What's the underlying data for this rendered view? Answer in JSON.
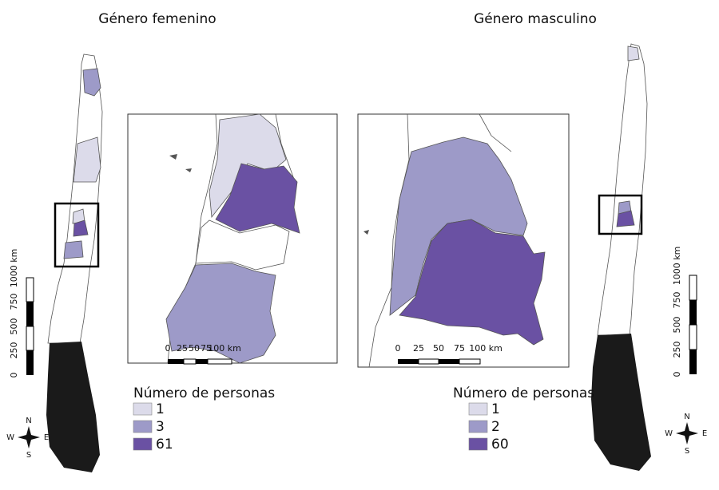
{
  "panels": [
    {
      "title": "Género femenino",
      "legend": {
        "title": "Número de personas",
        "items": [
          {
            "label": "1",
            "color": "#dcdbea"
          },
          {
            "label": "3",
            "color": "#9d9ac8"
          },
          {
            "label": "61",
            "color": "#6a51a3"
          }
        ]
      },
      "inset_scale": [
        "0",
        "25",
        "50",
        "75",
        "100 km"
      ],
      "map_scale": [
        "0",
        "250",
        "500",
        "750",
        "1000 km"
      ],
      "compass": [
        "N",
        "S",
        "E",
        "W"
      ]
    },
    {
      "title": "Género masculino",
      "legend": {
        "title": "Número de personas",
        "items": [
          {
            "label": "1",
            "color": "#dcdbea"
          },
          {
            "label": "2",
            "color": "#9d9ac8"
          },
          {
            "label": "60",
            "color": "#6a51a3"
          }
        ]
      },
      "inset_scale": [
        "0",
        "25",
        "50",
        "75",
        "100 km"
      ],
      "map_scale": [
        "0",
        "250",
        "500",
        "750",
        "1000 km"
      ],
      "compass": [
        "N",
        "S",
        "E",
        "W"
      ]
    }
  ]
}
